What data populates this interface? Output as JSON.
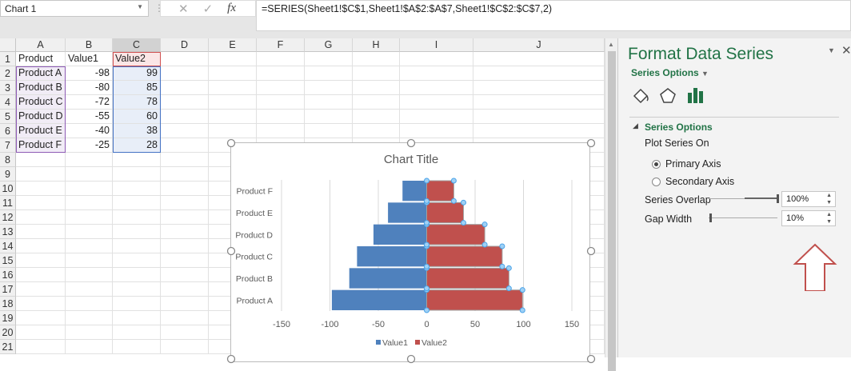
{
  "name_box": "Chart 1",
  "formula": "=SERIES(Sheet1!$C$1,Sheet1!$A$2:$A$7,Sheet1!$C$2:$C$7,2)",
  "columns": [
    "A",
    "B",
    "C",
    "D",
    "E",
    "F",
    "G",
    "H",
    "I",
    "J"
  ],
  "rows": [
    "1",
    "2",
    "3",
    "4",
    "5",
    "6",
    "7",
    "8",
    "9",
    "10",
    "11",
    "12",
    "13",
    "14",
    "15",
    "16",
    "17",
    "18",
    "19",
    "20",
    "21"
  ],
  "sheet": [
    [
      "Product",
      "Value1",
      "Value2"
    ],
    [
      "Product A",
      "-98",
      "99"
    ],
    [
      "Product B",
      "-80",
      "85"
    ],
    [
      "Product C",
      "-72",
      "78"
    ],
    [
      "Product D",
      "-55",
      "60"
    ],
    [
      "Product E",
      "-40",
      "38"
    ],
    [
      "Product F",
      "-25",
      "28"
    ]
  ],
  "pane": {
    "title": "Format Data Series",
    "dropdown": "Series Options",
    "section": "Series Options",
    "plot_on": "Plot Series On",
    "primary": "Primary Axis",
    "secondary": "Secondary Axis",
    "primary_selected": true,
    "overlap_label": "Series Overlap",
    "overlap_value": "100%",
    "overlap_level": 100,
    "gap_label": "Gap Width",
    "gap_value": "10%",
    "gap_level": 2,
    "accent": "#217346",
    "arrow_color": "#c0504d"
  },
  "chart_data": {
    "type": "bar",
    "orientation": "horizontal",
    "title": "Chart Title",
    "categories": [
      "Product A",
      "Product B",
      "Product C",
      "Product D",
      "Product E",
      "Product F"
    ],
    "series": [
      {
        "name": "Value1",
        "values": [
          -98,
          -80,
          -72,
          -55,
          -40,
          -25
        ],
        "color": "#4f81bd"
      },
      {
        "name": "Value2",
        "values": [
          99,
          85,
          78,
          60,
          38,
          28
        ],
        "color": "#c0504d"
      }
    ],
    "xlim": [
      -150,
      150
    ],
    "xticks": [
      "-150",
      "-100",
      "-50",
      "0",
      "50",
      "100",
      "150"
    ],
    "grid": true,
    "legend": "bottom",
    "selected_series": "Value2"
  }
}
